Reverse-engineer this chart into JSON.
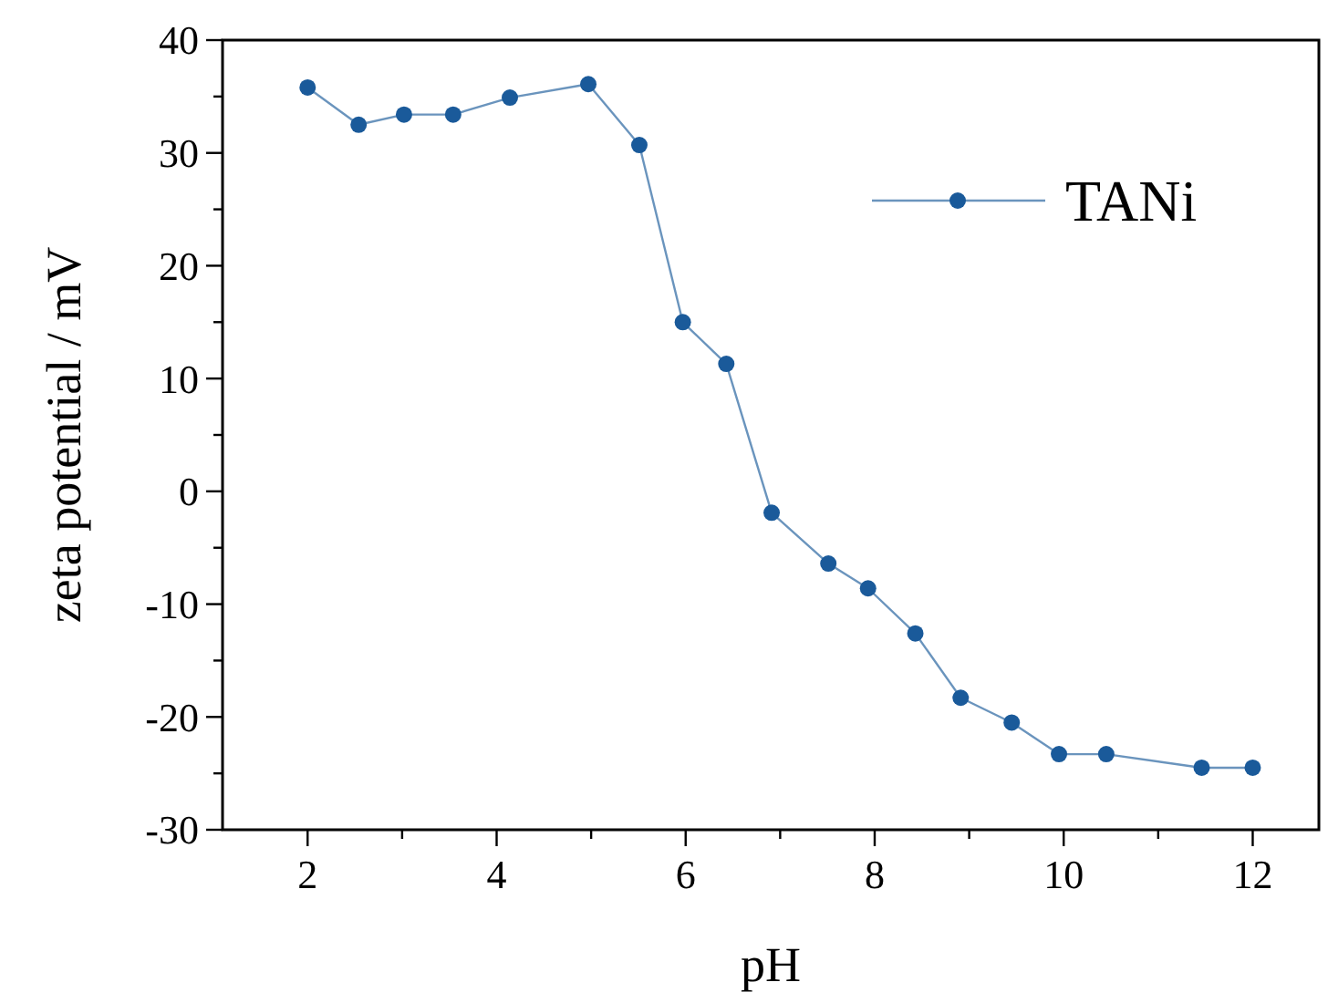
{
  "chart_data": {
    "type": "line",
    "xlabel": "pH",
    "ylabel": "zeta potential / mV",
    "xlim": [
      1.1,
      12.7
    ],
    "ylim": [
      -30,
      40
    ],
    "xticks": [
      2,
      {
        "value": 3,
        "label": null
      },
      4,
      {
        "value": 5,
        "label": null
      },
      6,
      {
        "value": 7,
        "label": null
      },
      8,
      {
        "value": 9,
        "label": null
      },
      10,
      {
        "value": 11,
        "label": null
      },
      12
    ],
    "yticks": [
      -30,
      {
        "value": -25,
        "label": null
      },
      -20,
      {
        "value": -15,
        "label": null
      },
      -10,
      {
        "value": -5,
        "label": null
      },
      0,
      {
        "value": 5,
        "label": null
      },
      10,
      {
        "value": 15,
        "label": null
      },
      20,
      {
        "value": 25,
        "label": null
      },
      30,
      {
        "value": 35,
        "label": null
      },
      40
    ],
    "marker": "circle",
    "legend": "top right",
    "grid": false,
    "series": [
      {
        "name": "TANi",
        "color": "#1a5a9a",
        "x": [
          2,
          2.54,
          3.02,
          3.54,
          4.14,
          4.97,
          5.51,
          5.97,
          6.43,
          6.91,
          7.51,
          7.93,
          8.43,
          8.91,
          9.45,
          9.95,
          10.45,
          11.46,
          12
        ],
        "values": [
          35.8,
          32.5,
          33.4,
          33.4,
          34.9,
          36.1,
          30.7,
          15.0,
          11.3,
          -1.9,
          -6.4,
          -8.6,
          -12.6,
          -18.3,
          -20.5,
          -23.3,
          -23.3,
          -24.5,
          -24.5
        ]
      }
    ]
  }
}
